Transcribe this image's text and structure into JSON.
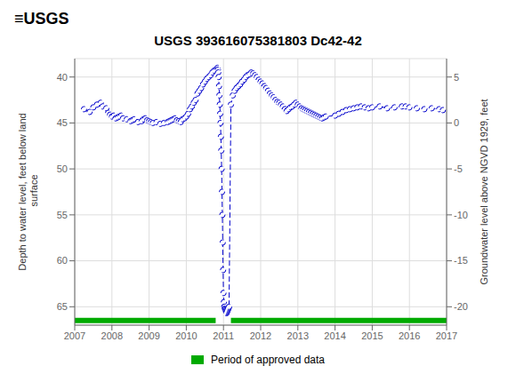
{
  "chart_data": {
    "type": "line",
    "title": "USGS 393616075381803 Dc42-42",
    "annotations": [
      "≡USGS"
    ],
    "ylabel": "Depth to water level, feet below land\n surface",
    "y2label": "Groundwater level above NGVD 1929, feet",
    "x": [
      2007.25,
      2007.4,
      2007.5,
      2007.6,
      2007.7,
      2007.75,
      2007.85,
      2007.9,
      2007.95,
      2008.0,
      2008.05,
      2008.1,
      2008.15,
      2008.2,
      2008.25,
      2008.3,
      2008.4,
      2008.5,
      2008.55,
      2008.6,
      2008.7,
      2008.8,
      2008.85,
      2008.9,
      2008.95,
      2009.0,
      2009.05,
      2009.1,
      2009.2,
      2009.3,
      2009.4,
      2009.5,
      2009.55,
      2009.6,
      2009.65,
      2009.7,
      2009.75,
      2009.8,
      2009.85,
      2009.9,
      2009.95,
      2010.0,
      2010.05,
      2010.1,
      2010.15,
      2010.2,
      2010.25,
      2010.3,
      2010.35,
      2010.4,
      2010.45,
      2010.5,
      2010.55,
      2010.6,
      2010.65,
      2010.7,
      2010.75,
      2010.8,
      2010.83,
      2010.84,
      2010.85,
      2010.86,
      2010.87,
      2010.88,
      2010.89,
      2010.9,
      2010.91,
      2010.92,
      2010.93,
      2010.94,
      2010.95,
      2010.96,
      2010.97,
      2010.98,
      2010.99,
      2011.0,
      2011.01,
      2011.02,
      2011.03,
      2011.04,
      2011.05,
      2011.06,
      2011.07,
      2011.08,
      2011.09,
      2011.1,
      2011.11,
      2011.12,
      2011.13,
      2011.14,
      2011.15,
      2011.2,
      2011.25,
      2011.3,
      2011.35,
      2011.4,
      2011.45,
      2011.5,
      2011.55,
      2011.6,
      2011.65,
      2011.7,
      2011.75,
      2011.8,
      2011.85,
      2011.9,
      2011.95,
      2012.0,
      2012.05,
      2012.1,
      2012.15,
      2012.2,
      2012.25,
      2012.3,
      2012.35,
      2012.4,
      2012.45,
      2012.5,
      2012.55,
      2012.6,
      2012.65,
      2012.7,
      2012.75,
      2012.8,
      2012.85,
      2012.9,
      2012.95,
      2013.0,
      2013.05,
      2013.1,
      2013.15,
      2013.2,
      2013.25,
      2013.3,
      2013.35,
      2013.4,
      2013.45,
      2013.5,
      2013.55,
      2013.6,
      2013.65,
      2013.7,
      2013.75,
      2014.0,
      2014.1,
      2014.2,
      2014.3,
      2014.4,
      2014.5,
      2014.6,
      2014.7,
      2014.8,
      2014.9,
      2015.0,
      2015.2,
      2015.4,
      2015.6,
      2015.8,
      2015.9,
      2016.0,
      2016.2,
      2016.4,
      2016.6,
      2016.8,
      2016.9
    ],
    "values": [
      43.5,
      43.8,
      43.3,
      43.0,
      42.8,
      43.2,
      43.4,
      43.9,
      44.1,
      44.3,
      44.2,
      44.5,
      44.4,
      44.3,
      44.2,
      44.5,
      44.6,
      44.8,
      44.7,
      44.6,
      44.9,
      44.8,
      44.6,
      44.5,
      44.7,
      44.8,
      44.9,
      45.0,
      44.9,
      45.1,
      45.0,
      44.9,
      44.8,
      44.7,
      44.6,
      44.5,
      44.7,
      44.8,
      44.9,
      44.6,
      44.5,
      44.3,
      44.0,
      43.5,
      43.2,
      42.8,
      42.5,
      41.8,
      41.5,
      41.2,
      40.8,
      40.5,
      40.2,
      40.0,
      39.8,
      39.5,
      39.3,
      39.2,
      39.1,
      39.0,
      39.2,
      39.5,
      40.0,
      41.0,
      42.0,
      43.0,
      44.0,
      45.0,
      46.5,
      48.0,
      50.0,
      52.5,
      55.0,
      58.0,
      61.0,
      63.5,
      64.5,
      65.0,
      65.2,
      65.3,
      65.4,
      65.5,
      65.6,
      65.7,
      65.6,
      65.5,
      65.4,
      65.3,
      65.2,
      65.1,
      65.0,
      43.0,
      42.0,
      41.5,
      41.2,
      41.0,
      40.8,
      40.5,
      40.3,
      40.0,
      39.8,
      39.7,
      39.5,
      39.6,
      39.8,
      40.0,
      40.3,
      40.5,
      40.7,
      41.0,
      41.2,
      41.5,
      41.8,
      42.0,
      42.2,
      42.5,
      42.7,
      42.8,
      43.0,
      43.2,
      43.5,
      43.7,
      43.5,
      43.3,
      43.2,
      43.0,
      42.8,
      43.0,
      43.2,
      43.4,
      43.5,
      43.6,
      43.7,
      43.8,
      43.9,
      44.0,
      44.1,
      44.2,
      44.3,
      44.4,
      44.5,
      44.4,
      44.3,
      44.2,
      44.0,
      43.8,
      43.6,
      43.5,
      43.4,
      43.3,
      43.2,
      43.3,
      43.4,
      43.3,
      43.2,
      43.4,
      43.3,
      43.2,
      43.2,
      43.3,
      43.4,
      43.5,
      43.4,
      43.5,
      43.6
    ],
    "color": "#0000cc",
    "marker": "o",
    "line_style": "dashed",
    "xlim": [
      2007.0,
      2017.0
    ],
    "xticks": [
      2007,
      2008,
      2009,
      2010,
      2011,
      2012,
      2013,
      2014,
      2015,
      2016,
      2017
    ],
    "ylim": [
      67,
      38
    ],
    "yticks": [
      40,
      45,
      50,
      55,
      60,
      65
    ],
    "y2lim": [
      -22,
      7
    ],
    "y2ticks": [
      5,
      0,
      -5,
      -10,
      -15,
      -20
    ],
    "grid": true,
    "legend": "bottom",
    "approved_data": {
      "name": "Period of approved data",
      "color": "#00aa00",
      "y": 66.5,
      "segments": [
        [
          2007.0,
          2010.79
        ],
        [
          2011.2,
          2017.0
        ]
      ]
    }
  }
}
